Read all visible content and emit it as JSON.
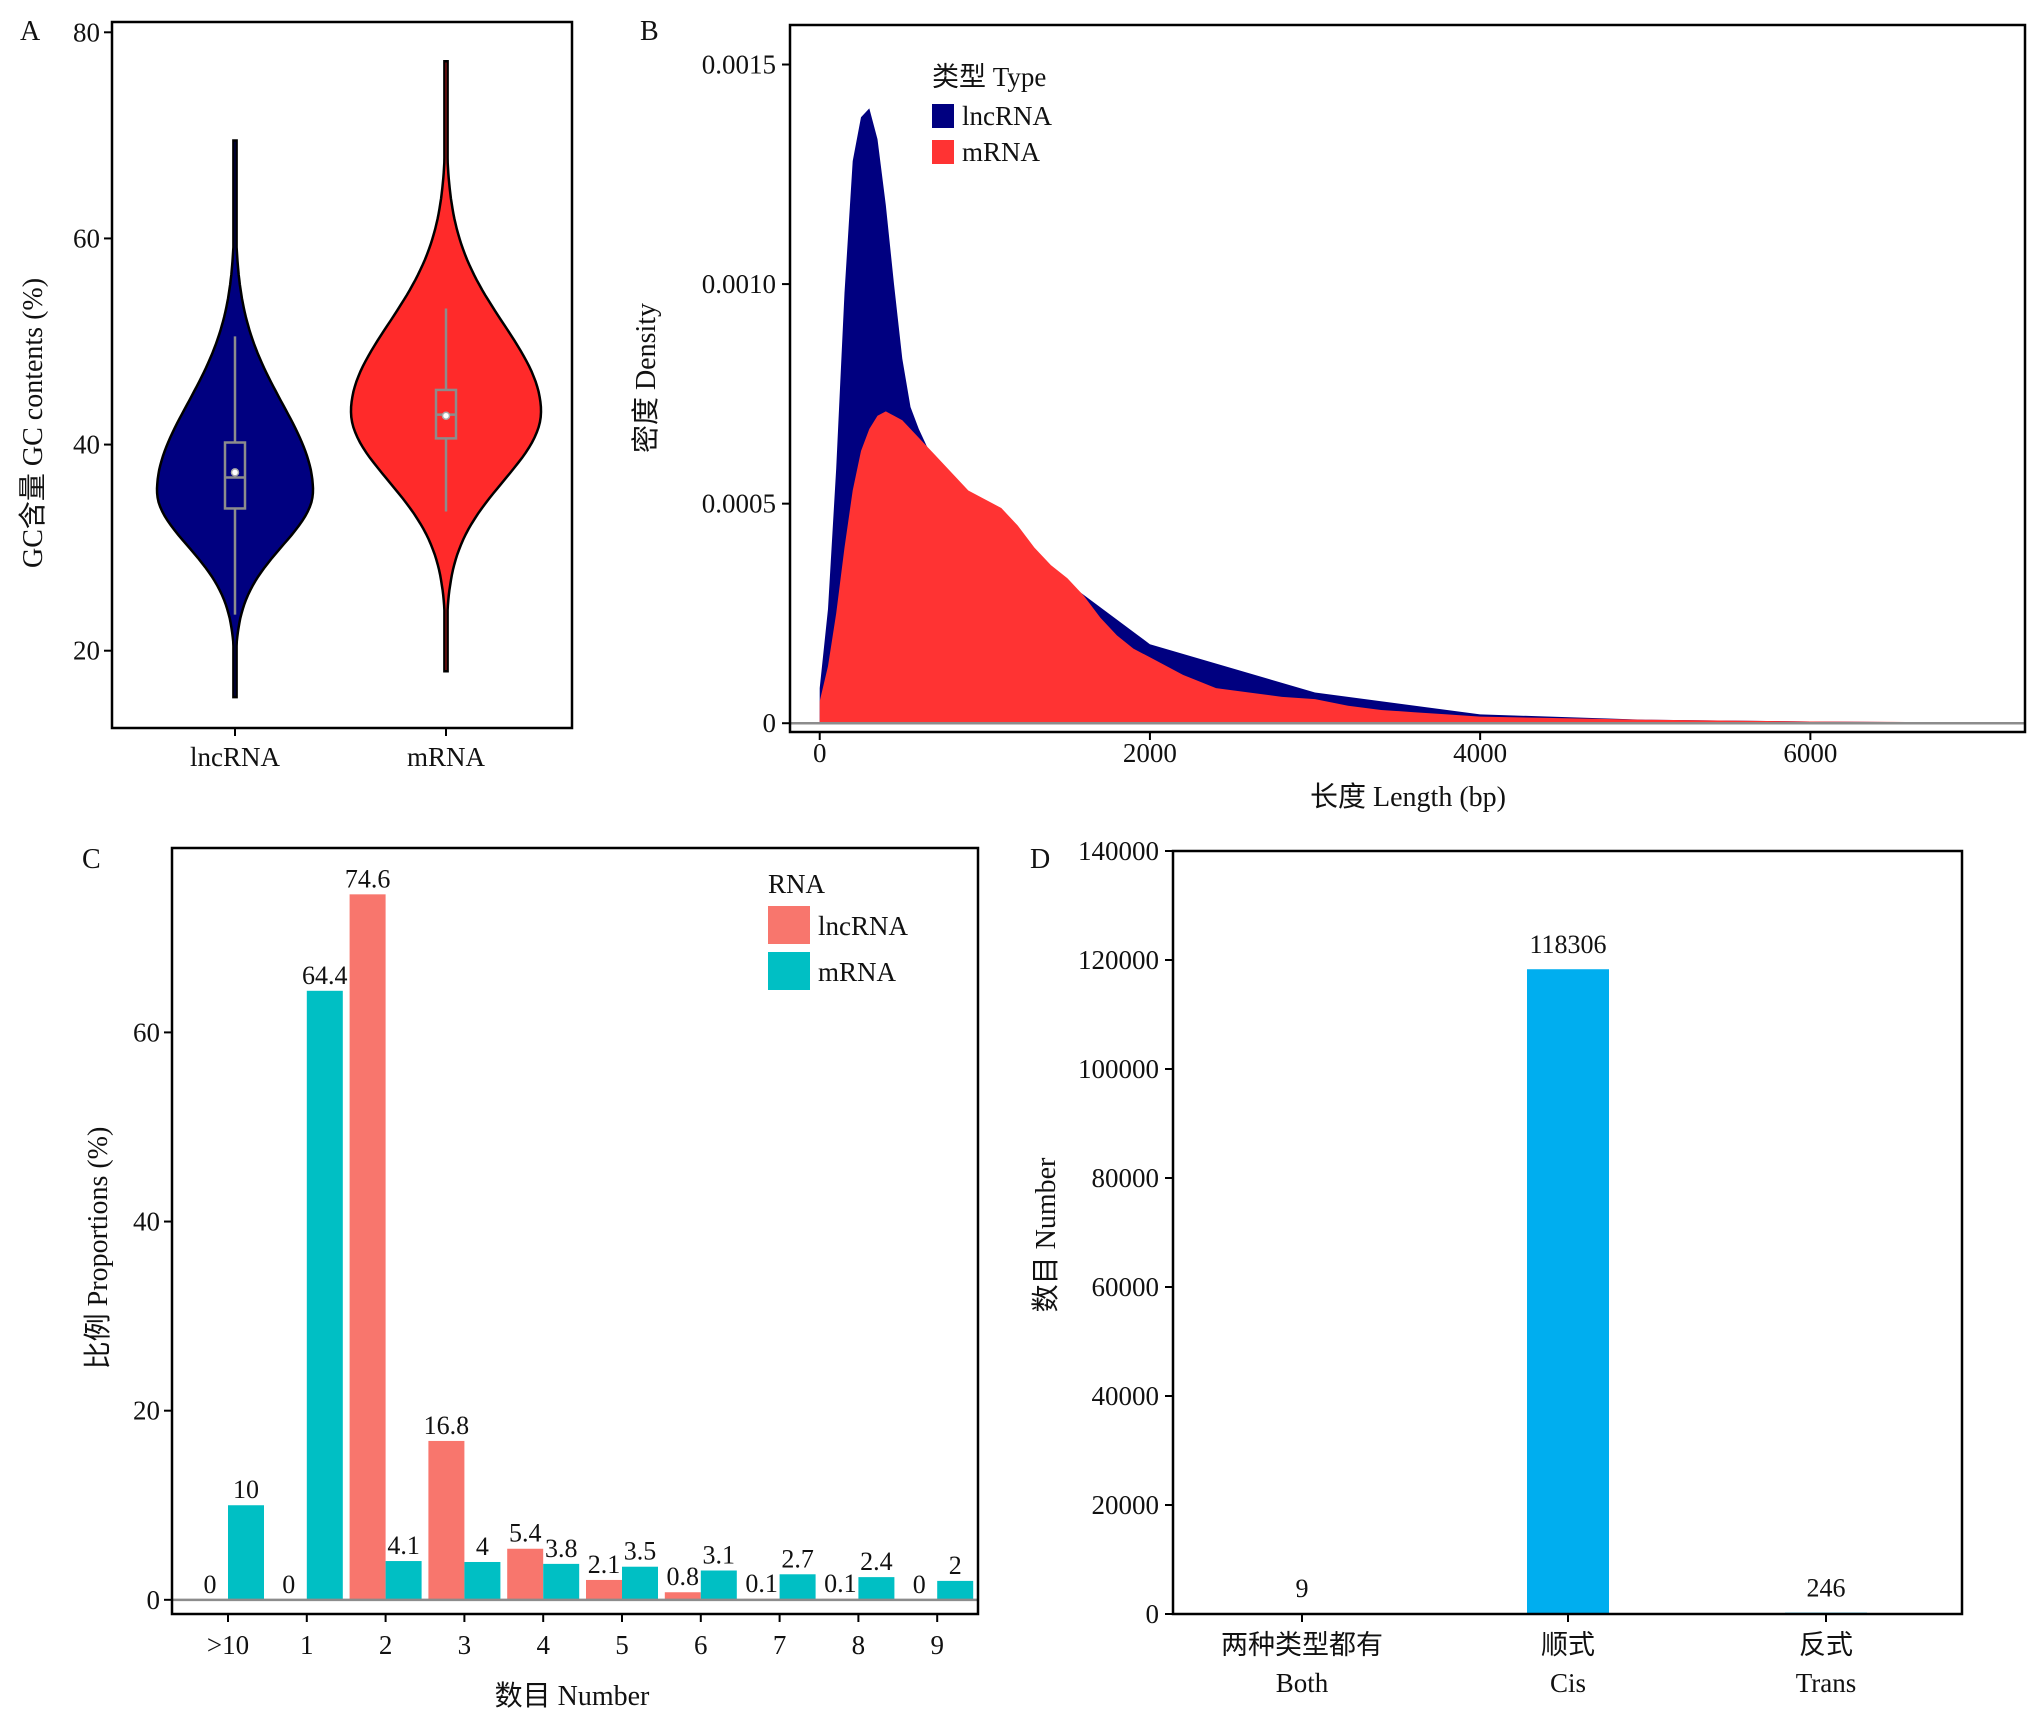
{
  "chart_data": [
    {
      "panel": "A",
      "type": "violin",
      "ylabel": "GC含量 GC contents (%)",
      "ylim": [
        12.5,
        81
      ],
      "yticks": [
        20,
        40,
        60,
        80
      ],
      "categories": [
        "lncRNA",
        "mRNA"
      ],
      "series": [
        {
          "name": "lncRNA",
          "color": "#000080",
          "min": 15.5,
          "max": 69.5,
          "q1": 33.8,
          "median": 36.8,
          "q3": 40.2,
          "mean": 37.3,
          "whisker_low": 23.5,
          "whisker_high": 50.5,
          "mode": 35.5
        },
        {
          "name": "mRNA",
          "color": "#ff2a2a",
          "min": 18,
          "max": 77.2,
          "q1": 40.6,
          "median": 42.9,
          "q3": 45.3,
          "mean": 42.8,
          "whisker_low": 33.5,
          "whisker_high": 53.2,
          "mode": 43.2
        }
      ]
    },
    {
      "panel": "B",
      "type": "area",
      "xlabel": "长度 Length (bp)",
      "ylabel": "密度 Density",
      "xlim": [
        -180,
        7300
      ],
      "ylim": [
        -2e-05,
        0.00159
      ],
      "xticks": [
        0,
        2000,
        4000,
        6000
      ],
      "yticks": [
        0,
        0.0005,
        0.001,
        0.0015
      ],
      "ytick_labels": [
        "0",
        "0.0005",
        "0.0010",
        "0.0015"
      ],
      "legend_title": "类型 Type",
      "legend_position": "top-left",
      "series": [
        {
          "name": "lncRNA",
          "color": "#000080",
          "x": [
            0,
            50,
            100,
            150,
            200,
            250,
            300,
            350,
            400,
            450,
            500,
            550,
            600,
            650,
            700,
            750,
            800,
            900,
            1000,
            1200,
            1500,
            2000,
            3000,
            4000,
            5000,
            6000,
            7200
          ],
          "y": [
            8e-05,
            0.00026,
            0.00058,
            0.00098,
            0.00128,
            0.00138,
            0.0014,
            0.00133,
            0.00118,
            0.001,
            0.00083,
            0.00072,
            0.00067,
            0.00063,
            0.0006,
            0.00057,
            0.00054,
            0.0005,
            0.00047,
            0.00041,
            0.00032,
            0.00018,
            7e-05,
            2e-05,
            8e-06,
            4e-06,
            1e-06
          ]
        },
        {
          "name": "mRNA",
          "color": "#ff3333",
          "x": [
            0,
            50,
            100,
            150,
            200,
            250,
            300,
            350,
            400,
            450,
            500,
            600,
            700,
            800,
            900,
            1000,
            1100,
            1200,
            1300,
            1400,
            1500,
            1600,
            1700,
            1800,
            1900,
            2000,
            2200,
            2400,
            2600,
            2800,
            3000,
            3200,
            3400,
            3600,
            3800,
            4000,
            4400,
            5000,
            5500,
            6000,
            6500,
            7200
          ],
          "y": [
            5e-05,
            0.00013,
            0.00025,
            0.0004,
            0.00053,
            0.00062,
            0.00067,
            0.0007,
            0.00071,
            0.0007,
            0.00069,
            0.00065,
            0.00061,
            0.00057,
            0.00053,
            0.00051,
            0.00049,
            0.00045,
            0.0004,
            0.00036,
            0.00033,
            0.00029,
            0.00024,
            0.0002,
            0.00017,
            0.00015,
            0.00011,
            8e-05,
            7e-05,
            6e-05,
            5.5e-05,
            4e-05,
            3e-05,
            2.5e-05,
            2e-05,
            1.5e-05,
            1.2e-05,
            8e-06,
            6e-06,
            4e-06,
            3e-06,
            2e-06
          ]
        }
      ]
    },
    {
      "panel": "C",
      "type": "bar",
      "xlabel": "数目 Number",
      "ylabel": "比例 Proportions (%)",
      "ylim": [
        -1.5,
        79.5
      ],
      "yticks": [
        0,
        20,
        40,
        60
      ],
      "categories": [
        ">10",
        "1",
        "2",
        "3",
        "4",
        "5",
        "6",
        "7",
        "8",
        "9"
      ],
      "legend_title": "RNA",
      "legend_position": "top-right",
      "series": [
        {
          "name": "lncRNA",
          "color": "#f8766d",
          "values": [
            0,
            0,
            74.6,
            16.8,
            5.4,
            2.1,
            0.8,
            0.1,
            0.1,
            0
          ],
          "labels": [
            "0",
            "0",
            "74.6",
            "16.8",
            "5.4",
            "2.1",
            "0.8",
            "0.1",
            "0.1",
            "0"
          ]
        },
        {
          "name": "mRNA",
          "color": "#00bfc4",
          "values": [
            10,
            64.4,
            4.1,
            4,
            3.8,
            3.5,
            3.1,
            2.7,
            2.4,
            2
          ],
          "labels": [
            "10",
            "64.4",
            "4.1",
            "4",
            "3.8",
            "3.5",
            "3.1",
            "2.7",
            "2.4",
            "2"
          ]
        }
      ]
    },
    {
      "panel": "D",
      "type": "bar",
      "ylabel": "数目 Number",
      "ylim": [
        0,
        140000
      ],
      "yticks": [
        0,
        20000,
        40000,
        60000,
        80000,
        100000,
        120000,
        140000
      ],
      "categories": [
        {
          "line1": "两种类型都有",
          "line2": "Both"
        },
        {
          "line1": "顺式",
          "line2": "Cis"
        },
        {
          "line1": "反式",
          "line2": "Trans"
        }
      ],
      "color": "#00aeef",
      "values": [
        9,
        118306,
        246
      ],
      "labels": [
        "9",
        "118306",
        "246"
      ]
    }
  ]
}
